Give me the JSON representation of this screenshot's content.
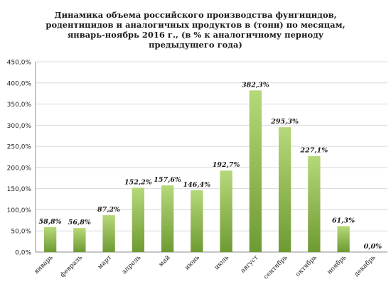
{
  "chart_data": {
    "type": "bar",
    "title": "Динамика объема российского производства фунгицидов, родентицидов и аналогичных продуктов в (тонн) по месяцам, январь-ноябрь 2016 г., (в % к аналогичному периоду предыдущего года)",
    "categories": [
      "январь",
      "февраль",
      "март",
      "апрель",
      "май",
      "июнь",
      "июль",
      "август",
      "сентябрь",
      "октябрь",
      "ноябрь",
      "декабрь"
    ],
    "values": [
      58.8,
      56.8,
      87.2,
      152.2,
      157.6,
      146.4,
      192.7,
      382.3,
      295.3,
      227.1,
      61.3,
      0.0
    ],
    "data_labels": [
      "58,8%",
      "56,8%",
      "87,2%",
      "152,2%",
      "157,6%",
      "146,4%",
      "192,7%",
      "382,3%",
      "295,3%",
      "227,1%",
      "61,3%",
      "0,0%"
    ],
    "y_ticks": [
      "0,0%",
      "50,0%",
      "100,0%",
      "150,0%",
      "200,0%",
      "250,0%",
      "300,0%",
      "350,0%",
      "400,0%",
      "450,0%"
    ],
    "ylim": [
      0,
      450
    ],
    "ytick_step": 50,
    "grid": true,
    "legend": "none",
    "colors": {
      "bar_light": "#b5d97a",
      "bar_dark": "#6f9a32",
      "grid": "#d9d9d9",
      "axis": "#8c8c8c"
    }
  }
}
